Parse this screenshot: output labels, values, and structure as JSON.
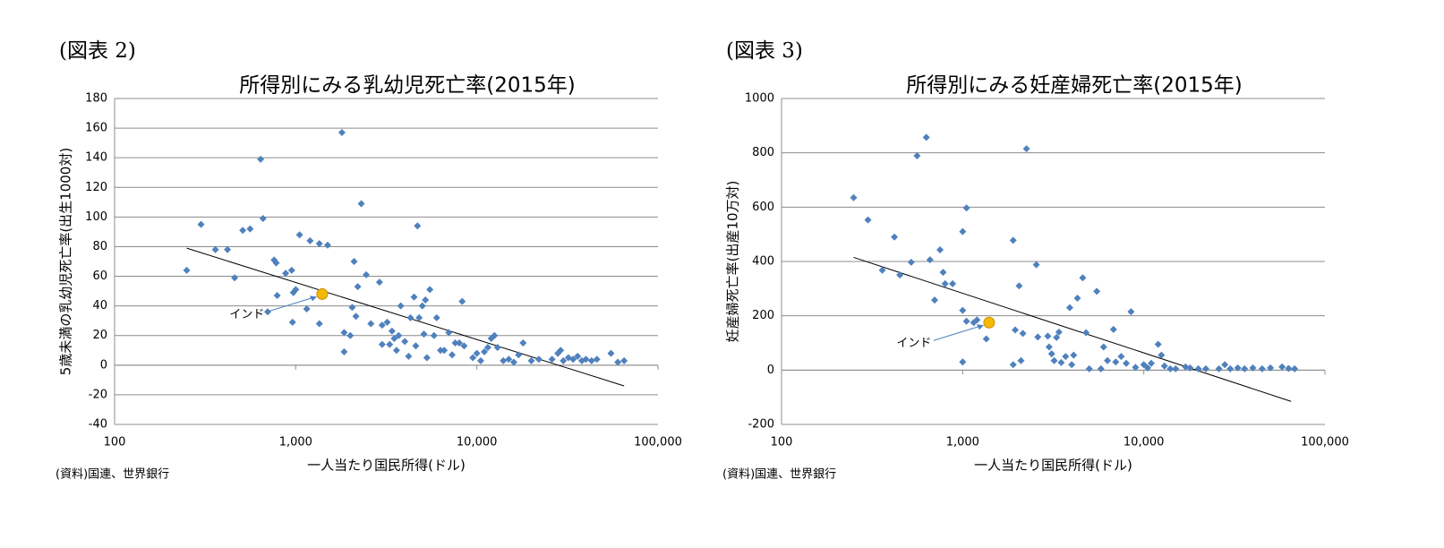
{
  "chart_data": [
    {
      "type": "scatter",
      "figure_label": "(図表 2)",
      "title": "所得別にみる乳幼児死亡率(2015年)",
      "x_label": "一人当たり国民所得(ドル)",
      "y_label": "5歳未満の乳幼児死亡率(出生1000対)",
      "source": "(資料)国連、世界銀行",
      "xscale": "log",
      "xlim": [
        100,
        100000
      ],
      "xticks": [
        100,
        {
          "value": 1000,
          "label": "1,000"
        },
        {
          "value": 10000,
          "label": "10,000"
        },
        {
          "value": 100000,
          "label": "100,000"
        }
      ],
      "ylim": [
        -40,
        180
      ],
      "yticks": [
        -40,
        -20,
        0,
        20,
        40,
        60,
        80,
        100,
        120,
        140,
        160,
        180
      ],
      "grid": true,
      "color": "#4f81bd",
      "negative_tick_color": "#c00000",
      "x": [
        250,
        300,
        360,
        420,
        460,
        510,
        560,
        640,
        660,
        700,
        760,
        780,
        790,
        880,
        950,
        960,
        970,
        1000,
        1050,
        1150,
        1200,
        1350,
        1350,
        1500,
        1800,
        1850,
        1850,
        2000,
        2050,
        2100,
        2150,
        2200,
        2300,
        2450,
        2600,
        2900,
        3000,
        3000,
        3200,
        3300,
        3400,
        3500,
        3600,
        3700,
        3800,
        4000,
        4200,
        4300,
        4500,
        4600,
        4700,
        4800,
        5000,
        5100,
        5200,
        5300,
        5500,
        5800,
        6000,
        6300,
        6600,
        7000,
        7300,
        7600,
        8000,
        8300,
        8500,
        9500,
        10000,
        10500,
        11000,
        11500,
        12000,
        12500,
        13000,
        14000,
        15000,
        16000,
        17000,
        18000,
        20000,
        22000,
        26000,
        28000,
        29000,
        30000,
        32000,
        34000,
        36000,
        38000,
        40000,
        43000,
        46000,
        55000,
        60000,
        65000
      ],
      "values": [
        64,
        95,
        78,
        78,
        59,
        91,
        92,
        139,
        99,
        36,
        71,
        69,
        47,
        62,
        64,
        29,
        49,
        51,
        88,
        38,
        84,
        82,
        28,
        81,
        157,
        9,
        22,
        20,
        39,
        70,
        33,
        53,
        109,
        61,
        28,
        56,
        27,
        14,
        29,
        14,
        23,
        18,
        10,
        20,
        40,
        16,
        6,
        32,
        46,
        13,
        94,
        32,
        40,
        21,
        44,
        5,
        51,
        20,
        32,
        10,
        10,
        22,
        7,
        15,
        15,
        43,
        13,
        5,
        8,
        3,
        9,
        12,
        18,
        20,
        12,
        3,
        4,
        2,
        7,
        15,
        3,
        4,
        4,
        8,
        10,
        3,
        5,
        4,
        6,
        3,
        4,
        3,
        4,
        8,
        2,
        3
      ],
      "trend": {
        "x": [
          250,
          65000
        ],
        "values": [
          79,
          -14
        ]
      },
      "annotation": {
        "text": "インド",
        "x": 1400,
        "y": 48,
        "color": "#f5b800"
      }
    },
    {
      "type": "scatter",
      "figure_label": "(図表 3)",
      "title": "所得別にみる妊産婦死亡率(2015年)",
      "x_label": "一人当たり国民所得(ドル)",
      "y_label": "妊産婦死亡率(出産10万対)",
      "source": "(資料)国連、世界銀行",
      "xscale": "log",
      "xlim": [
        100,
        100000
      ],
      "xticks": [
        100,
        {
          "value": 1000,
          "label": "1,000"
        },
        {
          "value": 10000,
          "label": "10,000"
        },
        {
          "value": 100000,
          "label": "100,000"
        }
      ],
      "ylim": [
        -200,
        1000
      ],
      "yticks": [
        -200,
        0,
        200,
        400,
        600,
        800,
        1000
      ],
      "grid": true,
      "color": "#4f81bd",
      "negative_tick_color": "#c00000",
      "x": [
        250,
        300,
        360,
        420,
        450,
        520,
        560,
        630,
        660,
        700,
        750,
        780,
        800,
        880,
        1000,
        1000,
        1000,
        1050,
        1050,
        1150,
        1200,
        1350,
        1900,
        1900,
        1950,
        2050,
        2100,
        2150,
        2250,
        2550,
        2600,
        2950,
        3000,
        3100,
        3200,
        3300,
        3400,
        3500,
        3700,
        3900,
        4000,
        4100,
        4300,
        4600,
        4800,
        5000,
        5500,
        5800,
        6000,
        6300,
        6800,
        7000,
        7500,
        8000,
        8500,
        9000,
        10000,
        10500,
        11000,
        12000,
        12500,
        13000,
        14000,
        15000,
        17000,
        18000,
        20000,
        22000,
        26000,
        28000,
        30000,
        33000,
        36000,
        40000,
        45000,
        50000,
        58000,
        63000,
        68000
      ],
      "values": [
        635,
        553,
        368,
        490,
        350,
        397,
        789,
        857,
        406,
        258,
        443,
        360,
        318,
        318,
        510,
        30,
        220,
        597,
        180,
        175,
        185,
        115,
        478,
        20,
        148,
        310,
        35,
        135,
        815,
        388,
        122,
        125,
        85,
        60,
        35,
        120,
        140,
        28,
        50,
        230,
        20,
        55,
        265,
        340,
        138,
        5,
        290,
        5,
        85,
        35,
        150,
        30,
        50,
        25,
        215,
        10,
        20,
        8,
        25,
        95,
        55,
        15,
        5,
        5,
        12,
        8,
        5,
        5,
        5,
        20,
        5,
        8,
        5,
        8,
        5,
        8,
        12,
        6,
        5
      ],
      "trend": {
        "x": [
          250,
          65000
        ],
        "values": [
          415,
          -115
        ]
      },
      "annotation": {
        "text": "インド",
        "x": 1400,
        "y": 175,
        "color": "#f5b800"
      }
    }
  ]
}
